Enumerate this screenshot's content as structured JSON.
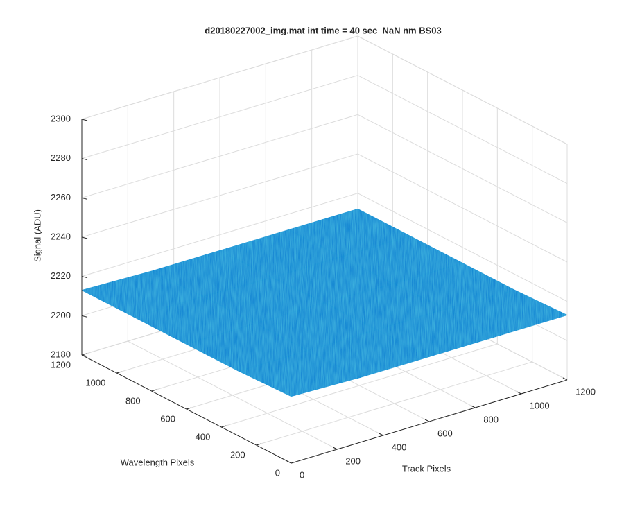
{
  "chart_data": {
    "type": "surface",
    "title": "d20180227002_img.mat int time = 40 sec  NaN nm BS03",
    "xlabel": "Track Pixels",
    "ylabel": "Wavelength Pixels",
    "zlabel": "Signal (ADU)",
    "x": [
      0,
      300,
      600,
      900,
      1200
    ],
    "y": [
      0,
      300,
      600,
      900,
      1200
    ],
    "z": [
      [
        2214,
        2213,
        2213,
        2213,
        2213
      ],
      [
        2213,
        2213,
        2213,
        2213,
        2212
      ],
      [
        2213,
        2213,
        2213,
        2212,
        2212
      ],
      [
        2213,
        2213,
        2212,
        2212,
        2212
      ],
      [
        2213,
        2212,
        2212,
        2212,
        2212
      ]
    ],
    "color": "#1a8ad4",
    "xlim": [
      0,
      1200
    ],
    "ylim": [
      0,
      1200
    ],
    "zlim": [
      2180,
      2300
    ],
    "xticks": [
      0,
      200,
      400,
      600,
      800,
      1000,
      1200
    ],
    "yticks": [
      0,
      200,
      400,
      600,
      800,
      1000,
      1200
    ],
    "zticks": [
      2180,
      2200,
      2220,
      2240,
      2260,
      2280,
      2300
    ],
    "grid": true
  }
}
